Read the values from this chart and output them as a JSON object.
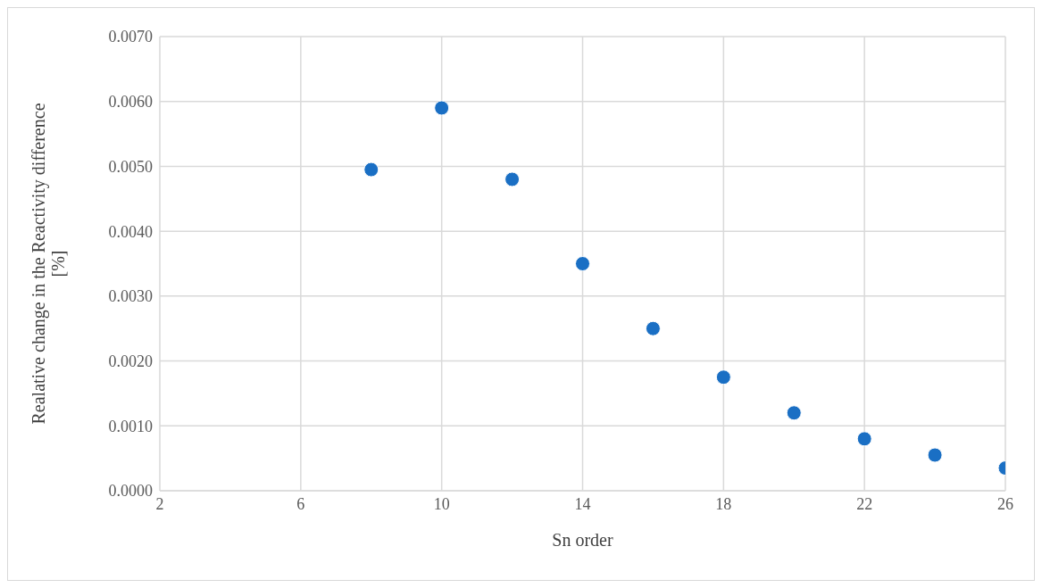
{
  "chart_data": {
    "type": "scatter",
    "xlabel": "Sn order",
    "ylabel": "Realative change in the Reactivity difference [%]",
    "x": [
      8,
      10,
      12,
      14,
      16,
      18,
      20,
      22,
      24,
      26
    ],
    "series": [
      {
        "color": "#1a6fc4",
        "values": [
          0.00495,
          0.0059,
          0.0048,
          0.0035,
          0.0025,
          0.00175,
          0.0012,
          0.0008,
          0.00055,
          0.00035
        ]
      }
    ],
    "xlim": [
      2,
      26
    ],
    "xticks": [
      2,
      6,
      10,
      14,
      18,
      22,
      26
    ],
    "ylim": [
      0,
      0.007
    ],
    "yticks": [
      {
        "value": 0,
        "label": "0.0000"
      },
      {
        "value": 0.001,
        "label": "0.0010"
      },
      {
        "value": 0.002,
        "label": "0.0020"
      },
      {
        "value": 0.003,
        "label": "0.0030"
      },
      {
        "value": 0.004,
        "label": "0.0040"
      },
      {
        "value": 0.005,
        "label": "0.0050"
      },
      {
        "value": 0.006,
        "label": "0.0060"
      },
      {
        "value": 0.007,
        "label": "0.0070"
      }
    ],
    "grid": true,
    "marker": "circle",
    "legend": false
  }
}
